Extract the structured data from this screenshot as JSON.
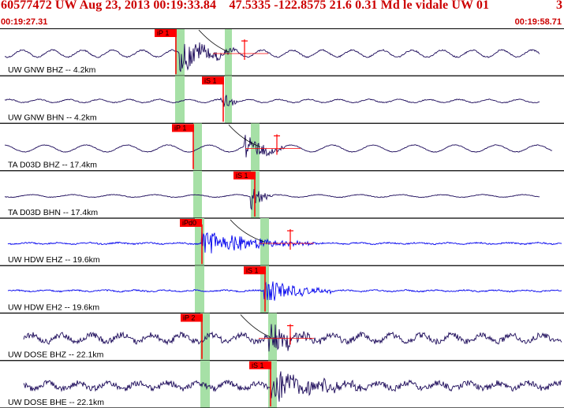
{
  "header": {
    "title": "60577472 UW Aug 23, 2013 00:19:33.84    47.5335 -122.8575 21.6 0.31 Md le vidale UW 01",
    "count": "3",
    "time_start": "00:19:27.31",
    "time_end": "00:19:58.71"
  },
  "colors": {
    "header_text": "#cc0000",
    "trace_dark": "#1c0a5a",
    "trace_blue": "#0000ee",
    "pick_box": "#ff0000",
    "window_band": "#a6e0a6",
    "separator": "#000000"
  },
  "panels": [
    {
      "label": "UW GNW BHZ -- 4.2km",
      "pick": "iP 1",
      "color": "dark",
      "amp": 0.55,
      "noise": 0.12,
      "burst": 1.0
    },
    {
      "label": "UW GNW BHN -- 4.2km",
      "pick": "iS 1",
      "color": "dark",
      "amp": 0.25,
      "noise": 0.08,
      "burst": 0.8
    },
    {
      "label": "TA D03D BHZ -- 17.4km",
      "pick": "iP 1",
      "color": "dark",
      "amp": 0.55,
      "noise": 0.06,
      "burst": 0.9
    },
    {
      "label": "TA D03D BHN -- 17.4km",
      "pick": "iS 1",
      "color": "dark",
      "amp": 0.2,
      "noise": 0.06,
      "burst": 0.9
    },
    {
      "label": "UW HDW EHZ -- 19.6km",
      "pick": "iPd0",
      "color": "blue",
      "amp": 0.1,
      "noise": 0.12,
      "burst": 0.8
    },
    {
      "label": "UW HDW EH2 -- 19.6km",
      "pick": "iS 1",
      "color": "blue",
      "amp": 0.1,
      "noise": 0.12,
      "burst": 0.8
    },
    {
      "label": "UW DOSE BHZ -- 22.1km",
      "pick": "iP 2",
      "color": "dark",
      "amp": 0.55,
      "noise": 0.5,
      "burst": 0.9
    },
    {
      "label": "UW DOSE BHE -- 22.1km",
      "pick": "iS 1",
      "color": "dark",
      "amp": 0.45,
      "noise": 0.5,
      "burst": 1.0
    }
  ]
}
